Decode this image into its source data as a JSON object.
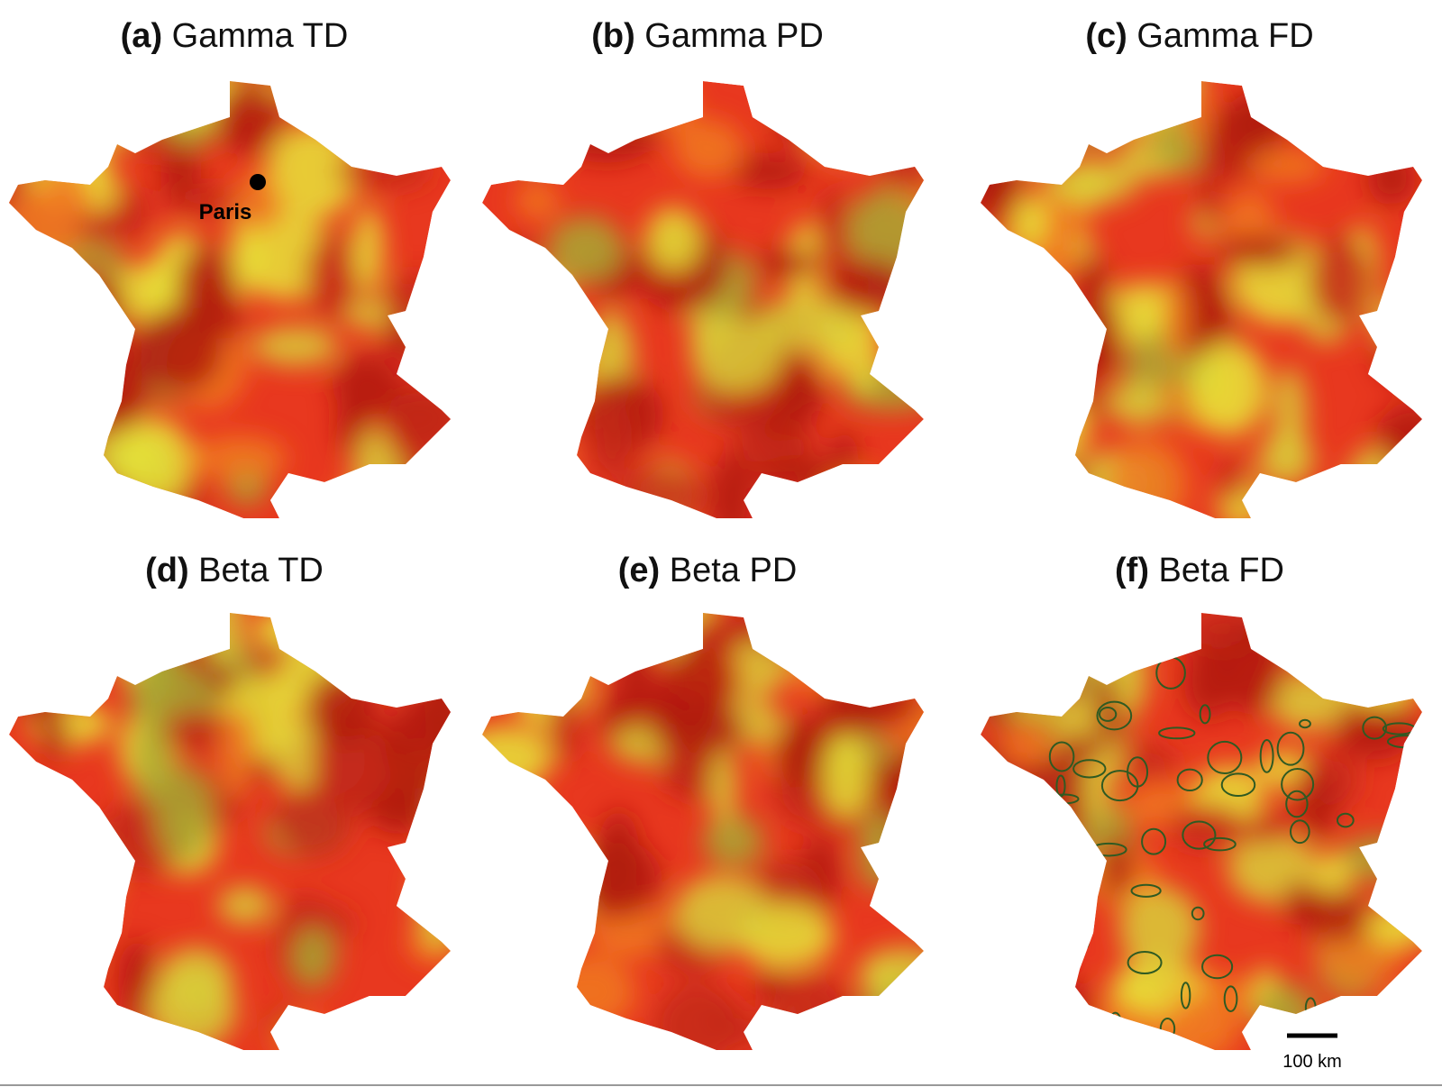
{
  "panels": [
    {
      "letter": "(a)",
      "title": "Gamma TD"
    },
    {
      "letter": "(b)",
      "title": "Gamma PD"
    },
    {
      "letter": "(c)",
      "title": "Gamma FD"
    },
    {
      "letter": "(d)",
      "title": "Beta TD"
    },
    {
      "letter": "(e)",
      "title": "Beta PD"
    },
    {
      "letter": "(f)",
      "title": "Beta FD"
    }
  ],
  "city_label": "Paris",
  "scale_bar_label": "100 km"
}
